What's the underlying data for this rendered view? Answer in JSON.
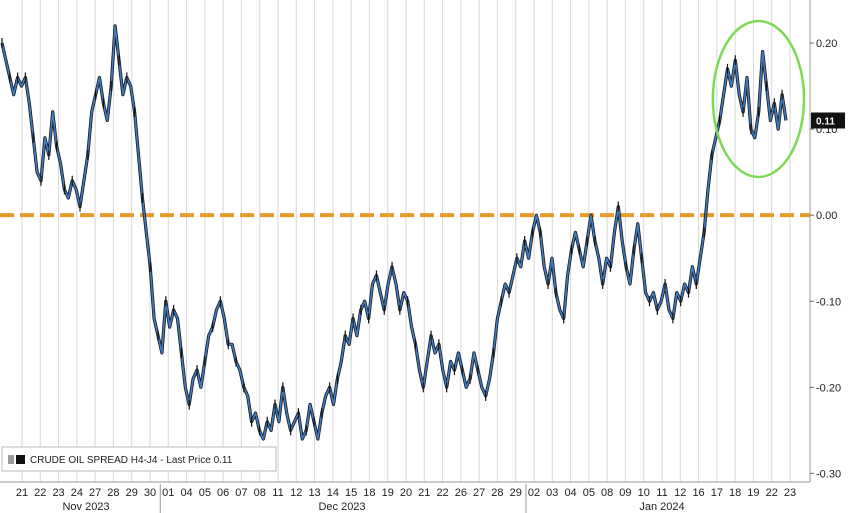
{
  "chart_data": {
    "type": "line",
    "legend": {
      "series_label": "CRUDE OIL SPREAD H4-J4 - Last Price 0.11",
      "placement": "bottom-left"
    },
    "last_price": {
      "label": "0.11",
      "value": 0.11
    },
    "ylim": [
      -0.31,
      0.25
    ],
    "y_ticks": [
      {
        "label": "0.20",
        "value": 0.2
      },
      {
        "label": "0.10",
        "value": 0.1
      },
      {
        "label": "0.00",
        "value": 0.0
      },
      {
        "label": "-0.10",
        "value": -0.1
      },
      {
        "label": "-0.20",
        "value": -0.2
      },
      {
        "label": "-0.30",
        "value": -0.3
      }
    ],
    "x_day_labels": [
      "21",
      "22",
      "23",
      "24",
      "27",
      "28",
      "29",
      "30",
      "01",
      "04",
      "05",
      "06",
      "07",
      "08",
      "11",
      "12",
      "13",
      "14",
      "15",
      "18",
      "19",
      "20",
      "21",
      "22",
      "26",
      "27",
      "28",
      "29",
      "02",
      "03",
      "04",
      "05",
      "08",
      "09",
      "10",
      "11",
      "12",
      "16",
      "17",
      "18",
      "19",
      "22",
      "23"
    ],
    "months": [
      {
        "label": "Nov 2023",
        "start_index": 0,
        "end_index": 7
      },
      {
        "label": "Dec 2023",
        "start_index": 8,
        "end_index": 27
      },
      {
        "label": "Jan 2024",
        "start_index": 28,
        "end_index": 42
      }
    ],
    "reference_line": {
      "value": 0.0,
      "color": "#e69a28",
      "style": "dashed"
    },
    "highlight_ellipse": {
      "color": "#7ed957",
      "from_index": 38,
      "to_index": 42
    },
    "grid": true,
    "series": [
      {
        "values": [
          0.2,
          0.18,
          0.16,
          0.14,
          0.16,
          0.15,
          0.16,
          0.13,
          0.09,
          0.05,
          0.04,
          0.09,
          0.07,
          0.12,
          0.08,
          0.06,
          0.03,
          0.02,
          0.04,
          0.03,
          0.01,
          0.04,
          0.07,
          0.12,
          0.14,
          0.16,
          0.13,
          0.11,
          0.15,
          0.22,
          0.18,
          0.14,
          0.16,
          0.15,
          0.12,
          0.07,
          0.02,
          -0.02,
          -0.06,
          -0.12,
          -0.14,
          -0.16,
          -0.1,
          -0.13,
          -0.11,
          -0.12,
          -0.16,
          -0.2,
          -0.22,
          -0.19,
          -0.18,
          -0.2,
          -0.17,
          -0.14,
          -0.13,
          -0.11,
          -0.1,
          -0.12,
          -0.15,
          -0.15,
          -0.17,
          -0.18,
          -0.2,
          -0.21,
          -0.24,
          -0.23,
          -0.25,
          -0.26,
          -0.24,
          -0.25,
          -0.22,
          -0.24,
          -0.2,
          -0.23,
          -0.25,
          -0.24,
          -0.23,
          -0.26,
          -0.25,
          -0.22,
          -0.24,
          -0.26,
          -0.23,
          -0.21,
          -0.2,
          -0.22,
          -0.19,
          -0.17,
          -0.14,
          -0.15,
          -0.12,
          -0.14,
          -0.11,
          -0.1,
          -0.12,
          -0.08,
          -0.07,
          -0.09,
          -0.11,
          -0.08,
          -0.06,
          -0.08,
          -0.11,
          -0.09,
          -0.1,
          -0.13,
          -0.15,
          -0.18,
          -0.2,
          -0.17,
          -0.14,
          -0.16,
          -0.15,
          -0.18,
          -0.2,
          -0.17,
          -0.18,
          -0.16,
          -0.18,
          -0.2,
          -0.19,
          -0.16,
          -0.18,
          -0.2,
          -0.21,
          -0.19,
          -0.16,
          -0.12,
          -0.1,
          -0.08,
          -0.09,
          -0.07,
          -0.05,
          -0.06,
          -0.03,
          -0.05,
          -0.02,
          0.0,
          -0.02,
          -0.06,
          -0.08,
          -0.05,
          -0.09,
          -0.11,
          -0.12,
          -0.07,
          -0.04,
          -0.02,
          -0.04,
          -0.06,
          -0.03,
          0.0,
          -0.03,
          -0.05,
          -0.08,
          -0.05,
          -0.06,
          -0.02,
          0.01,
          -0.03,
          -0.06,
          -0.08,
          -0.04,
          -0.01,
          -0.05,
          -0.09,
          -0.1,
          -0.09,
          -0.11,
          -0.1,
          -0.08,
          -0.11,
          -0.12,
          -0.09,
          -0.1,
          -0.08,
          -0.09,
          -0.06,
          -0.08,
          -0.05,
          -0.02,
          0.03,
          0.07,
          0.09,
          0.11,
          0.14,
          0.17,
          0.15,
          0.18,
          0.14,
          0.12,
          0.16,
          0.1,
          0.09,
          0.12,
          0.19,
          0.15,
          0.11,
          0.13,
          0.1,
          0.14,
          0.11
        ]
      }
    ]
  }
}
